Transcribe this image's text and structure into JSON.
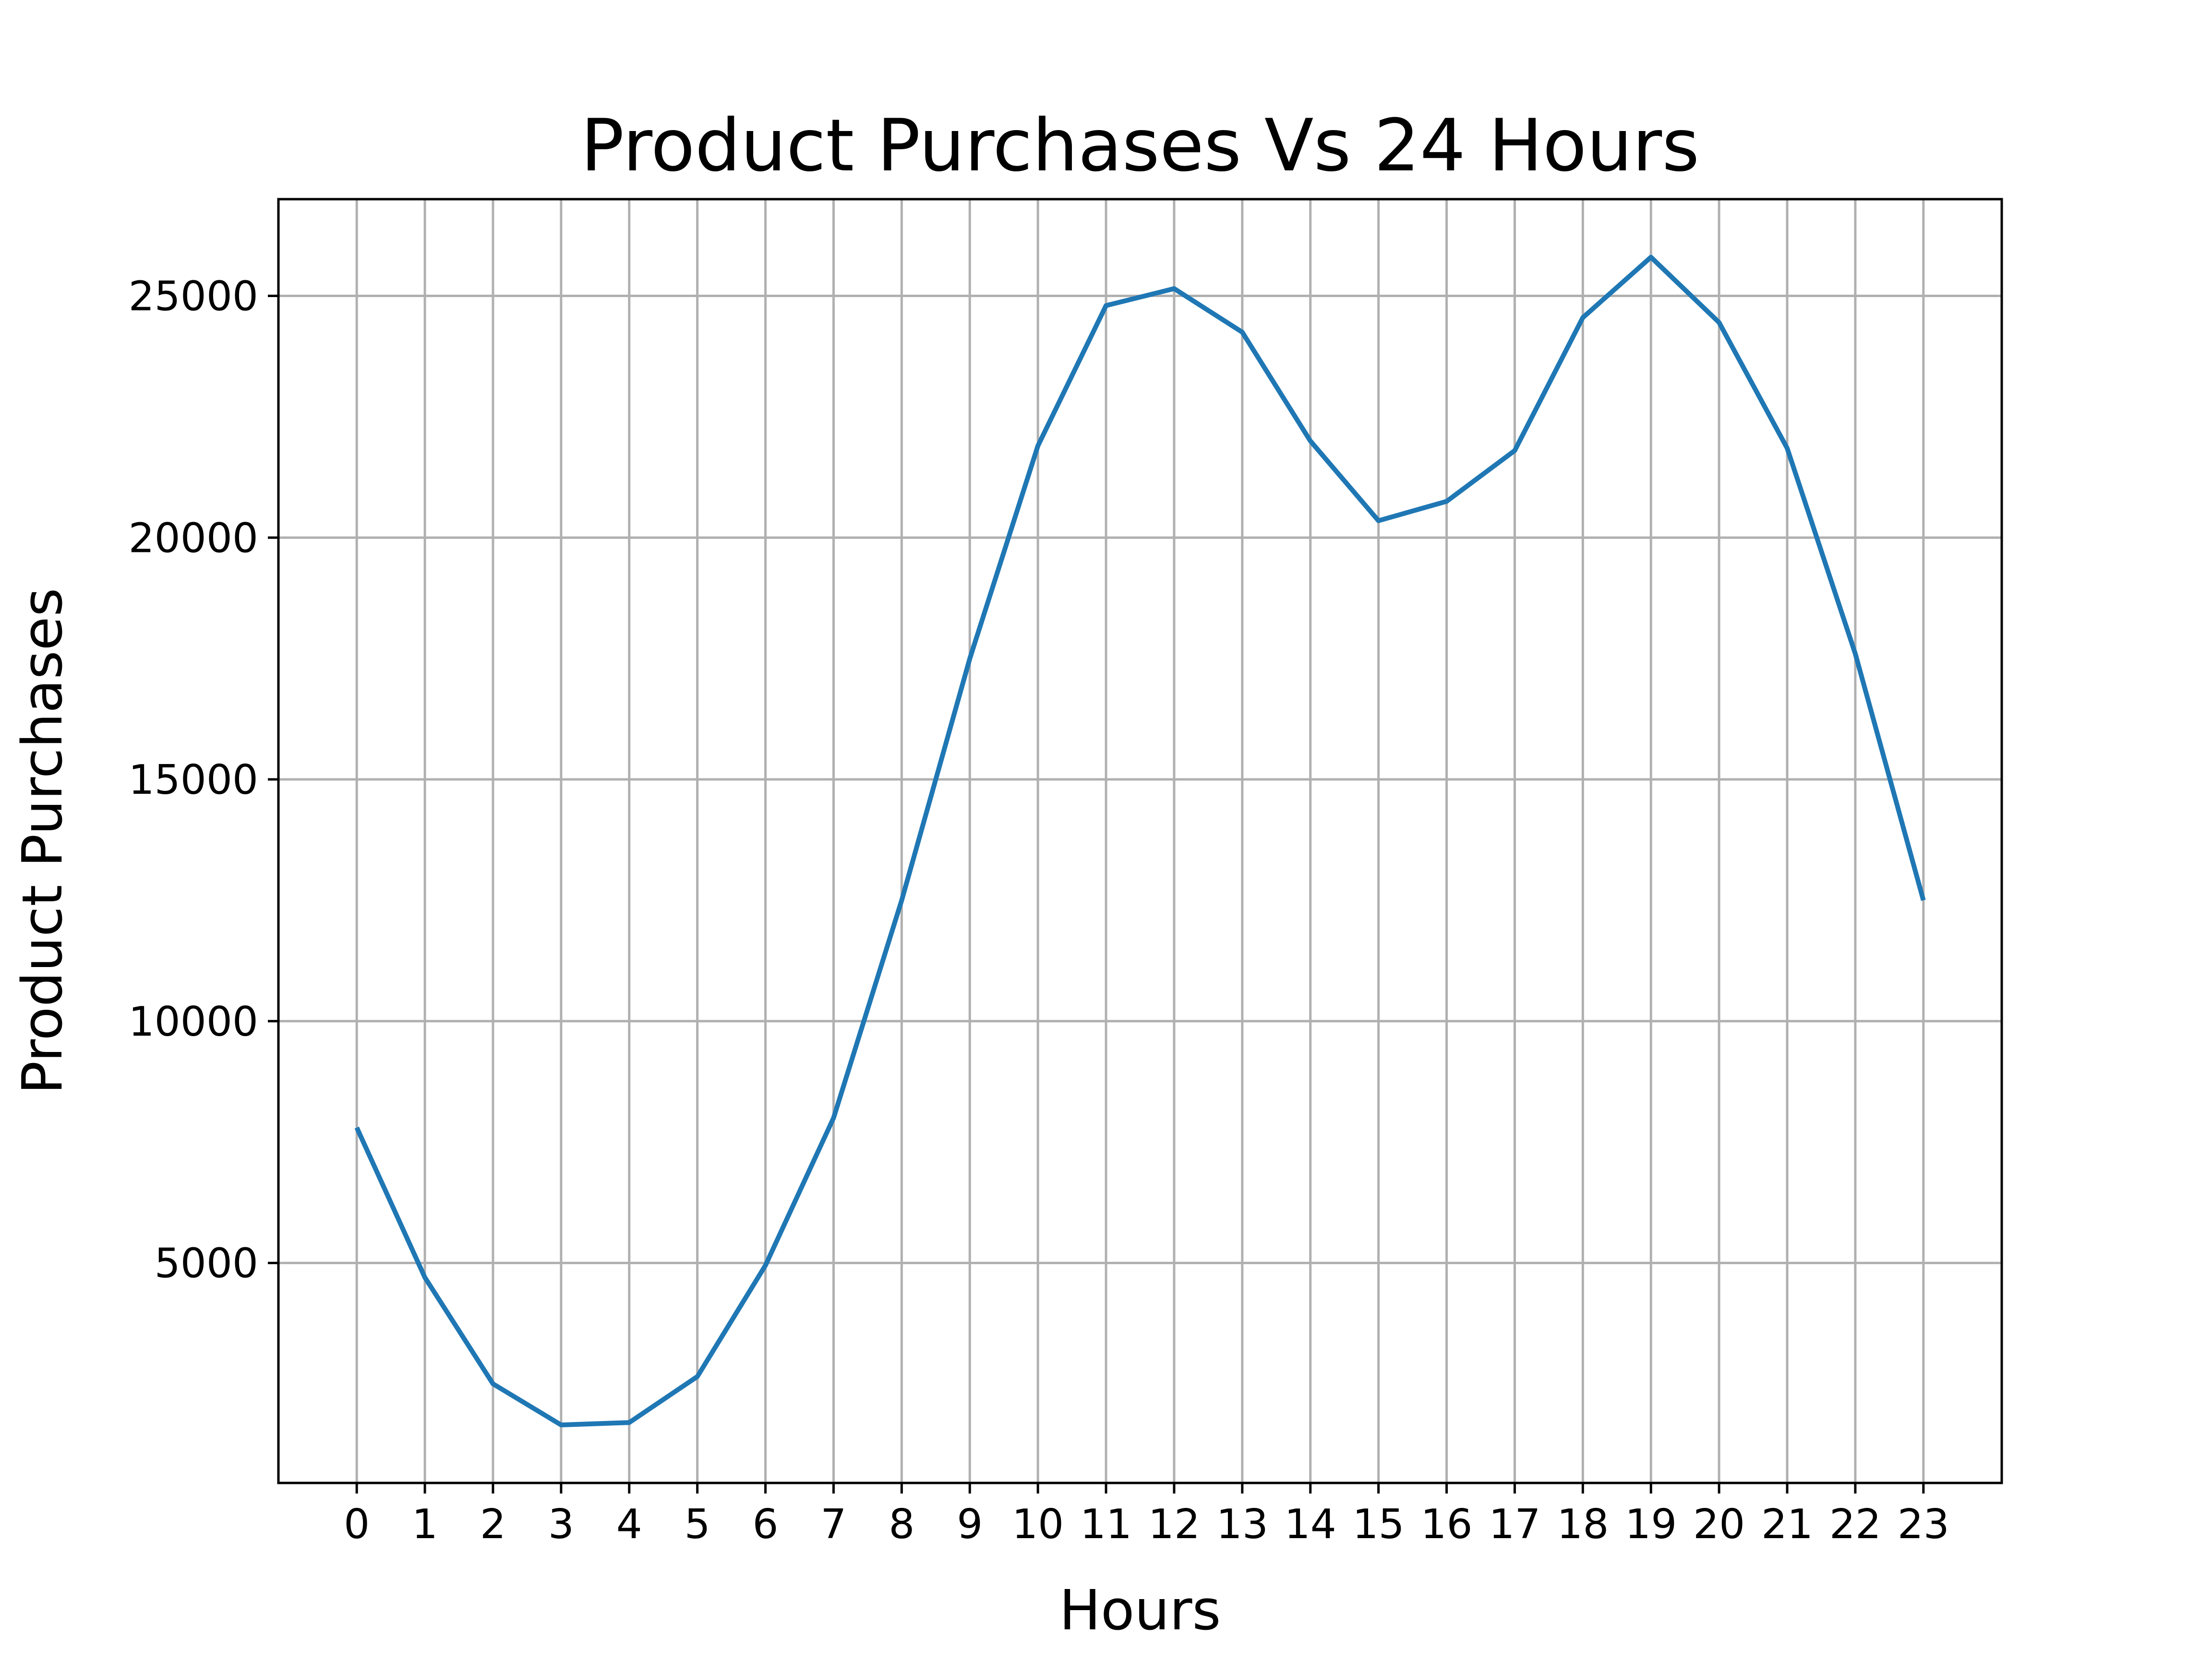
{
  "chart_data": {
    "type": "line",
    "title": "Product Purchases Vs 24 Hours",
    "xlabel": "Hours",
    "ylabel": "Product Purchases",
    "x": [
      0,
      1,
      2,
      3,
      4,
      5,
      6,
      7,
      8,
      9,
      10,
      11,
      12,
      13,
      14,
      15,
      16,
      17,
      18,
      19,
      20,
      21,
      22,
      23
    ],
    "x_ticks": [
      "0",
      "1",
      "2",
      "3",
      "4",
      "5",
      "6",
      "7",
      "8",
      "9",
      "10",
      "11",
      "12",
      "13",
      "14",
      "15",
      "16",
      "17",
      "18",
      "19",
      "20",
      "21",
      "22",
      "23"
    ],
    "y_ticks": [
      "5000",
      "10000",
      "15000",
      "20000",
      "25000"
    ],
    "y_tick_values": [
      5000,
      10000,
      15000,
      20000,
      25000
    ],
    "series": [
      {
        "values": [
          7800,
          4700,
          2500,
          1650,
          1700,
          2650,
          4950,
          8000,
          12500,
          17500,
          21900,
          24800,
          25150,
          24250,
          22000,
          20350,
          20750,
          21800,
          24550,
          25800,
          24450,
          21850,
          17600,
          12500
        ],
        "color": "#1f77b4"
      }
    ],
    "xlim": [
      -1.15,
      24.15
    ],
    "ylim": [
      450,
      27000
    ],
    "grid": true,
    "legend": "none"
  }
}
